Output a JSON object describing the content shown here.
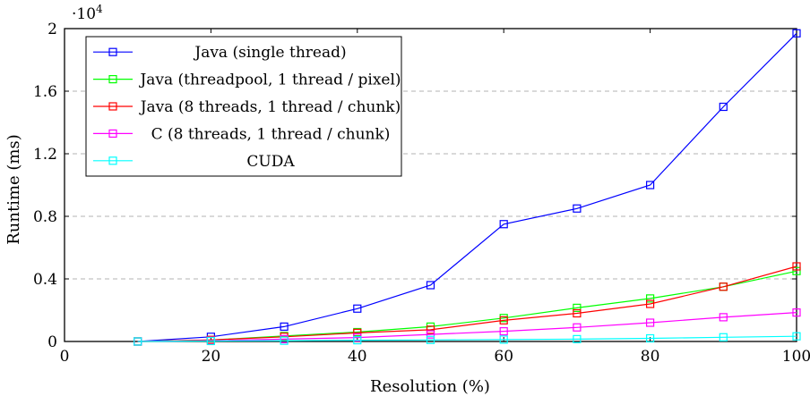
{
  "chart_data": {
    "type": "line",
    "xlabel": "Resolution (%)",
    "ylabel": "Runtime (ms)",
    "y_scale_label": "·10",
    "y_scale_exponent": "4",
    "xlim": [
      0,
      100
    ],
    "ylim": [
      0,
      2
    ],
    "x_ticks": [
      0,
      20,
      40,
      60,
      80,
      100
    ],
    "x_tick_labels": [
      "0",
      "20",
      "40",
      "60",
      "80",
      "100"
    ],
    "y_ticks": [
      0,
      0.4,
      0.8,
      1.2,
      1.6,
      2
    ],
    "y_tick_labels": [
      "0",
      "0.4",
      "0.8",
      "1.2",
      "1.6",
      "2"
    ],
    "grid": "horizontal dashed",
    "legend_position": "top-left",
    "x": [
      10,
      20,
      30,
      40,
      50,
      60,
      70,
      80,
      90,
      100
    ],
    "series": [
      {
        "name": "Java (single thread)",
        "color": "#0000ff",
        "values": [
          0,
          0.03,
          0.095,
          0.21,
          0.36,
          0.75,
          0.85,
          1.0,
          1.5,
          1.97
        ]
      },
      {
        "name": "Java (threadpool, 1 thread / pixel)",
        "color": "#00ff00",
        "values": [
          0,
          0.01,
          0.035,
          0.06,
          0.095,
          0.15,
          0.215,
          0.275,
          0.35,
          0.45
        ]
      },
      {
        "name": "Java (8 threads, 1 thread / chunk)",
        "color": "#ff0000",
        "values": [
          0,
          0.01,
          0.03,
          0.055,
          0.075,
          0.135,
          0.18,
          0.24,
          0.35,
          0.48
        ]
      },
      {
        "name": "C (8 threads, 1 thread / chunk)",
        "color": "#ff00ff",
        "values": [
          0,
          0.005,
          0.015,
          0.025,
          0.045,
          0.065,
          0.09,
          0.12,
          0.155,
          0.185
        ]
      },
      {
        "name": "CUDA",
        "color": "#00ffff",
        "values": [
          0,
          0.003,
          0.005,
          0.008,
          0.01,
          0.012,
          0.015,
          0.02,
          0.027,
          0.033
        ]
      }
    ]
  }
}
